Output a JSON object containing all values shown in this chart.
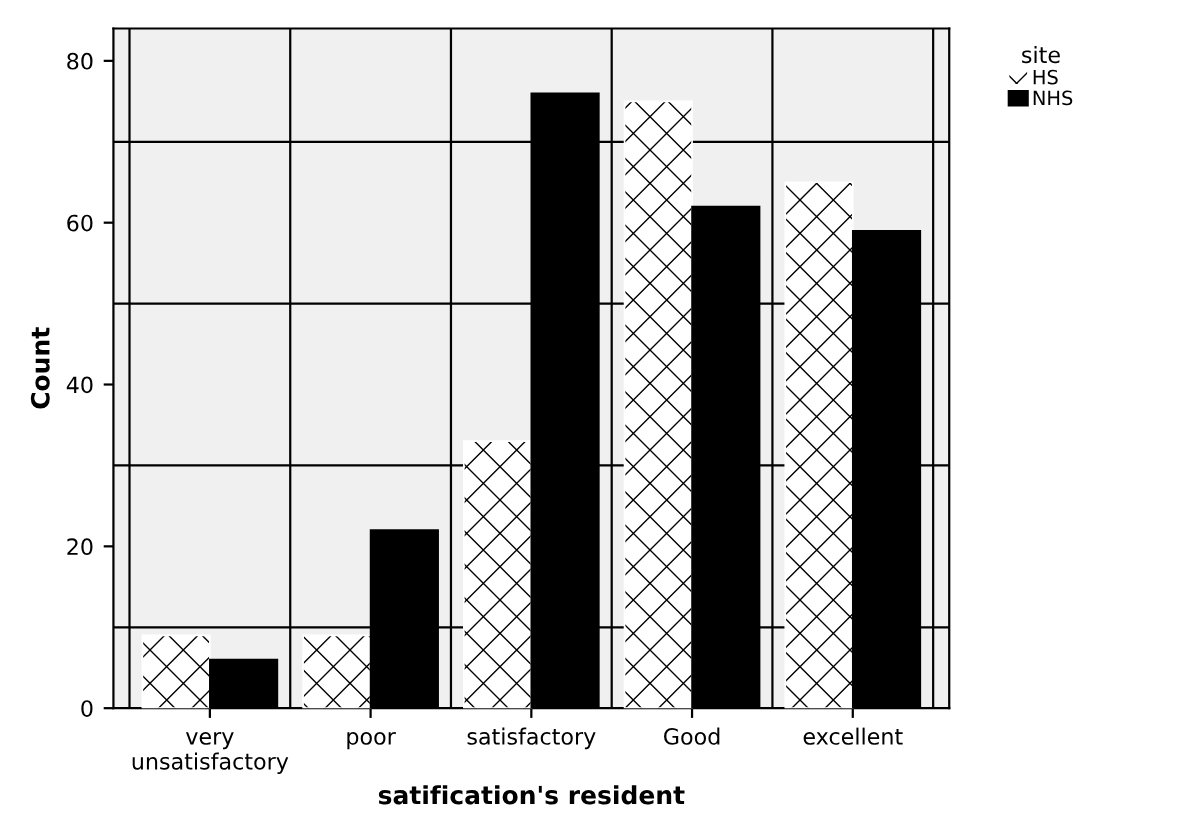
{
  "chart_data": {
    "type": "bar",
    "xlabel": "satification's resident",
    "ylabel": "Count",
    "legend_title": "site",
    "categories": [
      "very\nunsatisfactory",
      "poor",
      "satisfactory",
      "Good",
      "excellent"
    ],
    "series": [
      {
        "name": "HS",
        "color": "#ffffff",
        "values": [
          9,
          9,
          33,
          75,
          65
        ]
      },
      {
        "name": "NHS",
        "color": "#000000",
        "values": [
          6,
          22,
          76,
          62,
          59
        ]
      }
    ],
    "ylim": [
      0,
      84
    ],
    "yticks": [
      0,
      20,
      40,
      60,
      80
    ],
    "grid": true,
    "legend": "top right"
  }
}
